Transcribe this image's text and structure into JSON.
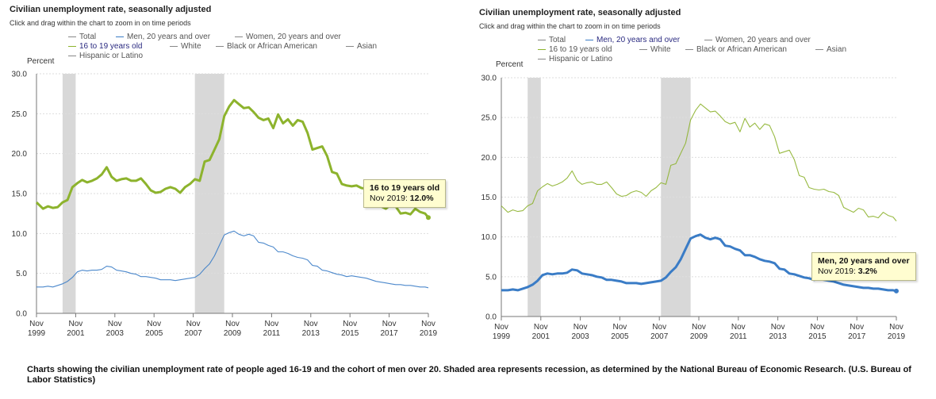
{
  "caption": "Charts showing the civilian unemployment rate of people aged 16-19 and the cohort of men over 20. Shaded area represents recession, as determined by the National Bureau of Economic Research. (U.S. Bureau of Labor Statistics)",
  "colors": {
    "teen": "#8db32d",
    "men": "#3a7cc6",
    "axis": "#555555",
    "recession": "#d8d8d8",
    "tooltip_bg": "#fffdd0"
  },
  "chart_data": [
    {
      "type": "line",
      "title": "Civilian unemployment rate, seasonally adjusted",
      "subtitle": "Click and drag within the chart to zoom in on time periods",
      "ylabel": "Percent",
      "ylim": [
        0,
        30
      ],
      "yticks": [
        "0.0",
        "5.0",
        "10.0",
        "15.0",
        "20.0",
        "25.0",
        "30.0"
      ],
      "xticks": [
        {
          "m": "Nov",
          "y": "1999"
        },
        {
          "m": "Nov",
          "y": "2001"
        },
        {
          "m": "Nov",
          "y": "2003"
        },
        {
          "m": "Nov",
          "y": "2005"
        },
        {
          "m": "Nov",
          "y": "2007"
        },
        {
          "m": "Nov",
          "y": "2009"
        },
        {
          "m": "Nov",
          "y": "2011"
        },
        {
          "m": "Nov",
          "y": "2013"
        },
        {
          "m": "Nov",
          "y": "2015"
        },
        {
          "m": "Nov",
          "y": "2017"
        },
        {
          "m": "Nov",
          "y": "2019"
        }
      ],
      "legend": [
        "Total",
        "Men, 20 years and over",
        "Women, 20 years and over",
        "16 to 19 years old",
        "White",
        "Black or African American",
        "Asian",
        "Hispanic or Latino"
      ],
      "highlight": "16 to 19 years old",
      "recessions": [
        [
          "2001-03",
          "2001-11"
        ],
        [
          "2007-12",
          "2009-06"
        ]
      ],
      "tooltip": {
        "name": "16 to 19 years old",
        "date": "Nov 2019",
        "value": "12.0%"
      },
      "series": [
        {
          "name": "16 to 19 years old",
          "emphasis": true,
          "points": [
            [
              "1999-11",
              13.9
            ],
            [
              "2000-03",
              13.1
            ],
            [
              "2000-06",
              13.4
            ],
            [
              "2000-09",
              13.2
            ],
            [
              "2000-12",
              13.3
            ],
            [
              "2001-03",
              13.9
            ],
            [
              "2001-06",
              14.2
            ],
            [
              "2001-09",
              15.8
            ],
            [
              "2001-12",
              16.3
            ],
            [
              "2002-03",
              16.7
            ],
            [
              "2002-06",
              16.4
            ],
            [
              "2002-09",
              16.6
            ],
            [
              "2002-12",
              16.9
            ],
            [
              "2003-03",
              17.4
            ],
            [
              "2003-06",
              18.3
            ],
            [
              "2003-09",
              17.1
            ],
            [
              "2003-12",
              16.6
            ],
            [
              "2004-03",
              16.8
            ],
            [
              "2004-06",
              16.9
            ],
            [
              "2004-09",
              16.6
            ],
            [
              "2004-12",
              16.6
            ],
            [
              "2005-03",
              16.9
            ],
            [
              "2005-06",
              16.2
            ],
            [
              "2005-09",
              15.4
            ],
            [
              "2005-12",
              15.1
            ],
            [
              "2006-03",
              15.2
            ],
            [
              "2006-06",
              15.6
            ],
            [
              "2006-09",
              15.8
            ],
            [
              "2006-12",
              15.6
            ],
            [
              "2007-03",
              15.1
            ],
            [
              "2007-06",
              15.8
            ],
            [
              "2007-09",
              16.2
            ],
            [
              "2007-12",
              16.8
            ],
            [
              "2008-03",
              16.6
            ],
            [
              "2008-06",
              19.0
            ],
            [
              "2008-09",
              19.2
            ],
            [
              "2008-12",
              20.5
            ],
            [
              "2009-03",
              21.8
            ],
            [
              "2009-06",
              24.7
            ],
            [
              "2009-09",
              25.9
            ],
            [
              "2009-12",
              26.7
            ],
            [
              "2010-03",
              26.2
            ],
            [
              "2010-06",
              25.7
            ],
            [
              "2010-09",
              25.8
            ],
            [
              "2010-12",
              25.2
            ],
            [
              "2011-03",
              24.5
            ],
            [
              "2011-06",
              24.2
            ],
            [
              "2011-09",
              24.4
            ],
            [
              "2011-12",
              23.2
            ],
            [
              "2012-03",
              24.9
            ],
            [
              "2012-06",
              23.8
            ],
            [
              "2012-09",
              24.3
            ],
            [
              "2012-12",
              23.5
            ],
            [
              "2013-03",
              24.2
            ],
            [
              "2013-06",
              24.0
            ],
            [
              "2013-09",
              22.6
            ],
            [
              "2013-12",
              20.5
            ],
            [
              "2014-03",
              20.7
            ],
            [
              "2014-06",
              20.9
            ],
            [
              "2014-09",
              19.7
            ],
            [
              "2014-12",
              17.7
            ],
            [
              "2015-03",
              17.5
            ],
            [
              "2015-06",
              16.2
            ],
            [
              "2015-09",
              16.0
            ],
            [
              "2015-12",
              15.9
            ],
            [
              "2016-03",
              16.0
            ],
            [
              "2016-06",
              15.7
            ],
            [
              "2016-09",
              15.6
            ],
            [
              "2016-12",
              15.2
            ],
            [
              "2017-03",
              13.7
            ],
            [
              "2017-06",
              13.4
            ],
            [
              "2017-09",
              13.1
            ],
            [
              "2017-12",
              13.6
            ],
            [
              "2018-03",
              13.4
            ],
            [
              "2018-06",
              12.5
            ],
            [
              "2018-09",
              12.6
            ],
            [
              "2018-12",
              12.4
            ],
            [
              "2019-03",
              13.1
            ],
            [
              "2019-06",
              12.7
            ],
            [
              "2019-09",
              12.5
            ],
            [
              "2019-11",
              12.0
            ]
          ]
        },
        {
          "name": "Men, 20 years and over",
          "emphasis": false,
          "points": [
            [
              "1999-11",
              3.3
            ],
            [
              "2000-03",
              3.3
            ],
            [
              "2000-06",
              3.4
            ],
            [
              "2000-09",
              3.3
            ],
            [
              "2000-12",
              3.5
            ],
            [
              "2001-03",
              3.7
            ],
            [
              "2001-06",
              4.0
            ],
            [
              "2001-09",
              4.5
            ],
            [
              "2001-12",
              5.2
            ],
            [
              "2002-03",
              5.4
            ],
            [
              "2002-06",
              5.3
            ],
            [
              "2002-09",
              5.4
            ],
            [
              "2002-12",
              5.4
            ],
            [
              "2003-03",
              5.5
            ],
            [
              "2003-06",
              5.9
            ],
            [
              "2003-09",
              5.8
            ],
            [
              "2003-12",
              5.4
            ],
            [
              "2004-03",
              5.3
            ],
            [
              "2004-06",
              5.2
            ],
            [
              "2004-09",
              5.0
            ],
            [
              "2004-12",
              4.9
            ],
            [
              "2005-03",
              4.6
            ],
            [
              "2005-06",
              4.6
            ],
            [
              "2005-09",
              4.5
            ],
            [
              "2005-12",
              4.4
            ],
            [
              "2006-03",
              4.2
            ],
            [
              "2006-06",
              4.2
            ],
            [
              "2006-09",
              4.2
            ],
            [
              "2006-12",
              4.1
            ],
            [
              "2007-03",
              4.2
            ],
            [
              "2007-06",
              4.3
            ],
            [
              "2007-09",
              4.4
            ],
            [
              "2007-12",
              4.5
            ],
            [
              "2008-03",
              4.9
            ],
            [
              "2008-06",
              5.6
            ],
            [
              "2008-09",
              6.2
            ],
            [
              "2008-12",
              7.2
            ],
            [
              "2009-03",
              8.5
            ],
            [
              "2009-06",
              9.8
            ],
            [
              "2009-09",
              10.1
            ],
            [
              "2009-12",
              10.3
            ],
            [
              "2010-03",
              9.9
            ],
            [
              "2010-06",
              9.7
            ],
            [
              "2010-09",
              9.9
            ],
            [
              "2010-12",
              9.7
            ],
            [
              "2011-03",
              8.9
            ],
            [
              "2011-06",
              8.8
            ],
            [
              "2011-09",
              8.5
            ],
            [
              "2011-12",
              8.3
            ],
            [
              "2012-03",
              7.7
            ],
            [
              "2012-06",
              7.7
            ],
            [
              "2012-09",
              7.5
            ],
            [
              "2012-12",
              7.2
            ],
            [
              "2013-03",
              7.0
            ],
            [
              "2013-06",
              6.9
            ],
            [
              "2013-09",
              6.7
            ],
            [
              "2013-12",
              6.0
            ],
            [
              "2014-03",
              5.9
            ],
            [
              "2014-06",
              5.4
            ],
            [
              "2014-09",
              5.3
            ],
            [
              "2014-12",
              5.1
            ],
            [
              "2015-03",
              4.9
            ],
            [
              "2015-06",
              4.8
            ],
            [
              "2015-09",
              4.6
            ],
            [
              "2015-12",
              4.7
            ],
            [
              "2016-03",
              4.6
            ],
            [
              "2016-06",
              4.5
            ],
            [
              "2016-09",
              4.4
            ],
            [
              "2016-12",
              4.2
            ],
            [
              "2017-03",
              4.0
            ],
            [
              "2017-06",
              3.9
            ],
            [
              "2017-09",
              3.8
            ],
            [
              "2017-12",
              3.7
            ],
            [
              "2018-03",
              3.6
            ],
            [
              "2018-06",
              3.6
            ],
            [
              "2018-09",
              3.5
            ],
            [
              "2018-12",
              3.5
            ],
            [
              "2019-03",
              3.4
            ],
            [
              "2019-06",
              3.3
            ],
            [
              "2019-09",
              3.3
            ],
            [
              "2019-11",
              3.2
            ]
          ]
        }
      ]
    },
    {
      "type": "line",
      "title": "Civilian unemployment rate, seasonally adjusted",
      "subtitle": "Click and drag within the chart to zoom in on time periods",
      "ylabel": "Percent",
      "ylim": [
        0,
        30
      ],
      "yticks": [
        "0.0",
        "5.0",
        "10.0",
        "15.0",
        "20.0",
        "25.0",
        "30.0"
      ],
      "xticks": [
        {
          "m": "Nov",
          "y": "1999"
        },
        {
          "m": "Nov",
          "y": "2001"
        },
        {
          "m": "Nov",
          "y": "2003"
        },
        {
          "m": "Nov",
          "y": "2005"
        },
        {
          "m": "Nov",
          "y": "2007"
        },
        {
          "m": "Nov",
          "y": "2009"
        },
        {
          "m": "Nov",
          "y": "2011"
        },
        {
          "m": "Nov",
          "y": "2013"
        },
        {
          "m": "Nov",
          "y": "2015"
        },
        {
          "m": "Nov",
          "y": "2017"
        },
        {
          "m": "Nov",
          "y": "2019"
        }
      ],
      "legend": [
        "Total",
        "Men, 20 years and over",
        "Women, 20 years and over",
        "16 to 19 years old",
        "White",
        "Black or African American",
        "Asian",
        "Hispanic or Latino"
      ],
      "highlight": "Men, 20 years and over",
      "recessions": [
        [
          "2001-03",
          "2001-11"
        ],
        [
          "2007-12",
          "2009-06"
        ]
      ],
      "tooltip": {
        "name": "Men, 20 years and over",
        "date": "Nov 2019",
        "value": "3.2%"
      },
      "series": [
        {
          "name": "16 to 19 years old",
          "emphasis": false,
          "same_as": 0
        },
        {
          "name": "Men, 20 years and over",
          "emphasis": true,
          "same_as": 1
        }
      ]
    }
  ]
}
